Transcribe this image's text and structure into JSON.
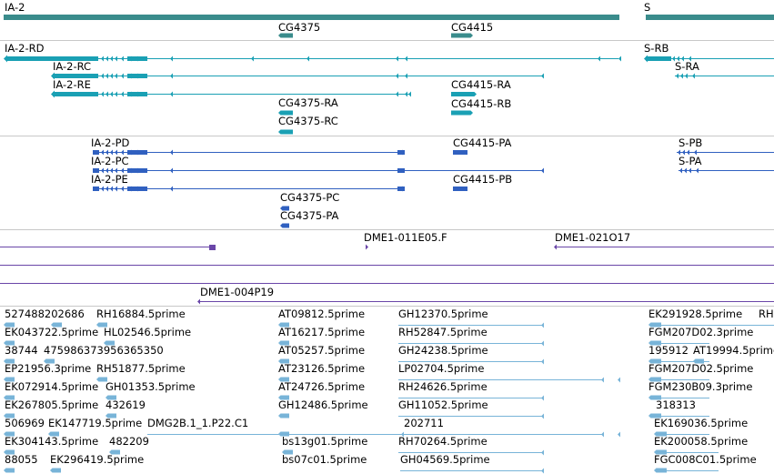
{
  "colors": {
    "gene": "#3a8c8c",
    "transcript_rna": "#1aa0b4",
    "transcript_protein": "#3060c0",
    "clone": "#6a46a8",
    "est": "#78b4d8",
    "separator": "#c8c8c8"
  },
  "tracks": {
    "genes": {
      "labels": [
        "IA-2",
        "S",
        "CG4375",
        "CG4415"
      ]
    },
    "rna_transcripts": {
      "labels": [
        "IA-2-RD",
        "S-RB",
        "IA-2-RC",
        "S-RA",
        "IA-2-RE",
        "CG4415-RA",
        "CG4375-RA",
        "CG4415-RB",
        "CG4375-RC"
      ]
    },
    "protein_transcripts": {
      "labels": [
        "IA-2-PD",
        "CG4415-PA",
        "S-PB",
        "IA-2-PC",
        "S-PA",
        "IA-2-PE",
        "CG4415-PB",
        "CG4375-PC",
        "CG4375-PA"
      ]
    },
    "clones": {
      "labels": [
        "DME1-011E05.F",
        "DME1-021O17",
        "DME1-004P19"
      ]
    },
    "ests": {
      "labels": [
        "527488202686",
        "RH16884.5prime",
        "AT09812.5prime",
        "GH12370.5prime",
        "EK291928.5prime",
        "RH",
        "EK043722.5prime",
        "HL02546.5prime",
        "AT16217.5prime",
        "RH52847.5prime",
        "FGM207D02.3prime",
        "38744",
        "475986373956365350",
        "AT05257.5prime",
        "GH24238.5prime",
        "195912",
        "AT19994.5prime",
        "EP21956.3prime",
        "RH51877.5prime",
        "AT23126.5prime",
        "LP02704.5prime",
        "FGM207D02.5prime",
        "EK072914.5prime",
        "GH01353.5prime",
        "AT24726.5prime",
        "RH24626.5prime",
        "FGM230B09.3prime",
        "EK267805.5prime",
        "432619",
        "GH12486.5prime",
        "GH11052.5prime",
        "318313",
        "506969",
        "EK147719.5prime",
        "DMG2B.1_1.P22.C1",
        "202711",
        "EK169036.5prime",
        "EK304143.5prime",
        "482209",
        "bs13g01.5prime",
        "RH70264.5prime",
        "EK200058.5prime",
        "88055",
        "EK296419.5prime",
        "bs07c01.5prime",
        "GH04569.5prime",
        "FGC008C01.5prime"
      ]
    }
  }
}
